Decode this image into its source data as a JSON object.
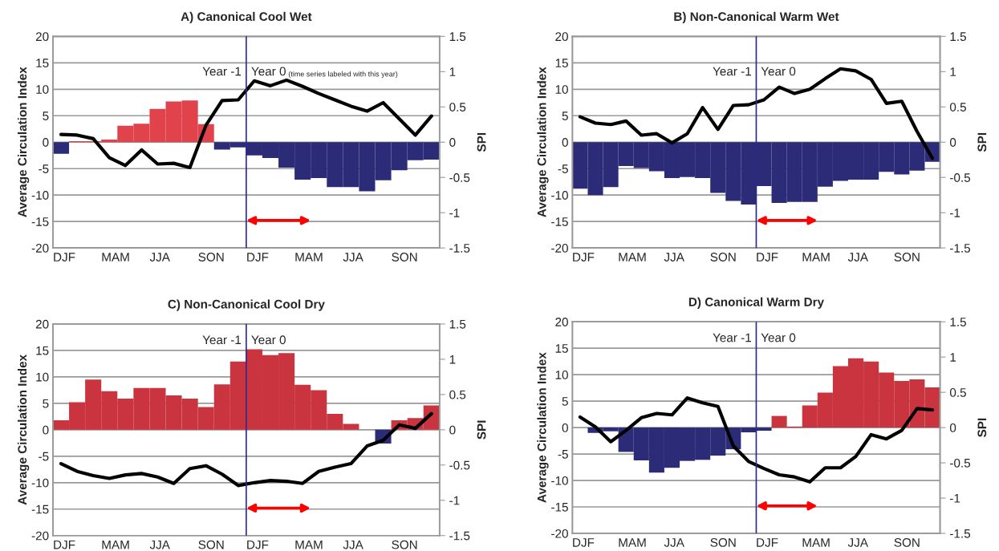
{
  "chart_data": [
    {
      "type": "bar",
      "title": "A) Canonical Cool Wet",
      "ylabel": "Average Circulation Index",
      "y2label": "SPI",
      "categories": [
        "DJF",
        null,
        null,
        "MAM",
        null,
        null,
        "JJA",
        null,
        null,
        "SON",
        null,
        null,
        "DJF",
        null,
        null,
        "MAM",
        null,
        null,
        "JJA",
        null,
        null,
        "SON",
        null,
        null
      ],
      "series": [
        {
          "values": [
            -2.2,
            0.2,
            0.2,
            0.5,
            3.1,
            3.5,
            6.3,
            7.7,
            7.9,
            3.4,
            -1.4,
            -1.0,
            -2.5,
            -3.0,
            -4.8,
            -7.1,
            -6.8,
            -8.5,
            -8.5,
            -9.3,
            -7.2,
            -5.3,
            -3.4,
            -3.3
          ],
          "colors": [
            "#2b2b78",
            "#e0434b",
            "#e0434b",
            "#e0434b",
            "#e0434b",
            "#e0434b",
            "#e0434b",
            "#e0434b",
            "#e0434b",
            "#e0434b",
            "#2b2b78",
            "#2b2b78",
            "#2b2b78",
            "#2b2b78",
            "#2b2b78",
            "#2b2b78",
            "#2b2b78",
            "#2b2b78",
            "#2b2b78",
            "#2b2b78",
            "#2b2b78",
            "#2b2b78",
            "#2b2b78",
            "#2b2b78"
          ]
        },
        {
          "type": "line",
          "axis": "y2",
          "color": "#000000",
          "values": [
            0.11,
            0.1,
            0.05,
            -0.22,
            -0.33,
            -0.11,
            -0.31,
            -0.3,
            -0.36,
            0.24,
            0.59,
            0.6,
            0.87,
            0.8,
            0.88,
            0.79,
            0.69,
            0.6,
            0.51,
            0.44,
            0.56,
            0.33,
            0.1,
            0.37
          ]
        }
      ],
      "ylim": [
        -20,
        20
      ],
      "yticks": [
        -20,
        -15,
        -10,
        -5,
        0,
        5,
        10,
        15,
        20
      ],
      "y2lim": [
        -1.5,
        1.5
      ],
      "y2ticks": [
        -1.5,
        -1,
        -0.5,
        0,
        0.5,
        1,
        1.5
      ],
      "grid": "y",
      "annotations": [
        "Year -1",
        "Year 0",
        "(time series labeled with this year)"
      ]
    },
    {
      "type": "bar",
      "title": "B) Non-Canonical Warm Wet",
      "ylabel": "Average Circulation Index",
      "y2label": "SPI",
      "categories": [
        "DJF",
        null,
        null,
        "MAM",
        null,
        null,
        "JJA",
        null,
        null,
        "SON",
        null,
        null,
        "DJF",
        null,
        null,
        "MAM",
        null,
        null,
        "JJA",
        null,
        null,
        "SON",
        null,
        null
      ],
      "series": [
        {
          "values": [
            -8.8,
            -10.0,
            -8.5,
            -4.5,
            -4.9,
            -5.5,
            -6.8,
            -6.6,
            -6.8,
            -9.6,
            -11.1,
            -11.8,
            -8.3,
            -11.5,
            -11.3,
            -11.3,
            -8.4,
            -7.3,
            -7.1,
            -7.1,
            -5.6,
            -6.1,
            -5.4,
            -3.7
          ],
          "colors": [
            "#2b2b78",
            "#2b2b78",
            "#2b2b78",
            "#2b2b78",
            "#2b2b78",
            "#2b2b78",
            "#2b2b78",
            "#2b2b78",
            "#2b2b78",
            "#2b2b78",
            "#2b2b78",
            "#2b2b78",
            "#2b2b78",
            "#2b2b78",
            "#2b2b78",
            "#2b2b78",
            "#2b2b78",
            "#2b2b78",
            "#2b2b78",
            "#2b2b78",
            "#2b2b78",
            "#2b2b78",
            "#2b2b78",
            "#2b2b78"
          ]
        },
        {
          "type": "line",
          "axis": "y2",
          "color": "#000000",
          "values": [
            0.36,
            0.27,
            0.25,
            0.3,
            0.1,
            0.12,
            -0.01,
            0.12,
            0.49,
            0.18,
            0.52,
            0.53,
            0.6,
            0.78,
            0.69,
            0.75,
            0.9,
            1.04,
            1.01,
            0.89,
            0.55,
            0.58,
            0.15,
            -0.23
          ]
        }
      ],
      "ylim": [
        -20,
        20
      ],
      "yticks": [
        -20,
        -15,
        -10,
        -5,
        0,
        5,
        10,
        15,
        20
      ],
      "y2lim": [
        -1.5,
        1.5
      ],
      "y2ticks": [
        -1.5,
        -1,
        -0.5,
        0,
        0.5,
        1,
        1.5
      ],
      "grid": "y",
      "annotations": [
        "Year -1",
        "Year 0"
      ]
    },
    {
      "type": "bar",
      "title": "C) Non-Canonical Cool Dry",
      "ylabel": "Average Circulation Index",
      "y2label": "SPI",
      "categories": [
        "DJF",
        null,
        null,
        "MAM",
        null,
        null,
        "JJA",
        null,
        null,
        "SON",
        null,
        null,
        "DJF",
        null,
        null,
        "MAM",
        null,
        null,
        "JJA",
        null,
        null,
        "SON",
        null,
        null
      ],
      "series": [
        {
          "values": [
            1.8,
            5.2,
            9.5,
            7.3,
            5.9,
            7.9,
            7.9,
            6.5,
            5.9,
            4.3,
            8.6,
            12.9,
            15.2,
            14.1,
            14.5,
            8.5,
            7.5,
            3.0,
            1.1,
            0,
            -2.6,
            1.8,
            2.2,
            4.6
          ],
          "colors": [
            "#c9343f",
            "#c9343f",
            "#c9343f",
            "#c9343f",
            "#c9343f",
            "#c9343f",
            "#c9343f",
            "#c9343f",
            "#c9343f",
            "#c9343f",
            "#c9343f",
            "#c9343f",
            "#c9343f",
            "#c9343f",
            "#c9343f",
            "#c9343f",
            "#c9343f",
            "#c9343f",
            "#c9343f",
            "#c9343f",
            "#2b2b78",
            "#c9343f",
            "#c9343f",
            "#c9343f"
          ]
        },
        {
          "type": "line",
          "axis": "y2",
          "color": "#000000",
          "values": [
            -0.48,
            -0.59,
            -0.65,
            -0.69,
            -0.64,
            -0.62,
            -0.67,
            -0.76,
            -0.55,
            -0.51,
            -0.63,
            -0.79,
            -0.75,
            -0.72,
            -0.73,
            -0.76,
            -0.59,
            -0.53,
            -0.48,
            -0.23,
            -0.15,
            0.07,
            0.02,
            0.23
          ]
        }
      ],
      "ylim": [
        -20,
        20
      ],
      "yticks": [
        -20,
        -15,
        -10,
        -5,
        0,
        5,
        10,
        15,
        20
      ],
      "y2lim": [
        -1.5,
        1.5
      ],
      "y2ticks": [
        -1.5,
        -1,
        -0.5,
        0,
        0.5,
        1,
        1.5
      ],
      "grid": "y",
      "annotations": [
        "Year -1",
        "Year 0"
      ]
    },
    {
      "type": "bar",
      "title": "D) Canonical Warm Dry",
      "ylabel": "Average Circulation Index",
      "y2label": "SPI",
      "categories": [
        "DJF",
        null,
        null,
        "MAM",
        null,
        null,
        "JJA",
        null,
        null,
        "SON",
        null,
        null,
        "DJF",
        null,
        null,
        "MAM",
        null,
        null,
        "JJA",
        null,
        null,
        "SON",
        null,
        null
      ],
      "series": [
        {
          "values": [
            0,
            -1.0,
            -0.7,
            -4.6,
            -6.2,
            -8.5,
            -7.6,
            -6.3,
            -6.1,
            -5.3,
            -4.1,
            -0.9,
            -0.6,
            2.2,
            0.2,
            4.2,
            6.6,
            11.6,
            13.1,
            12.5,
            10.4,
            8.8,
            9.1,
            7.6
          ],
          "colors": [
            "#2b2b78",
            "#2b2b78",
            "#2b2b78",
            "#2b2b78",
            "#2b2b78",
            "#2b2b78",
            "#2b2b78",
            "#2b2b78",
            "#2b2b78",
            "#2b2b78",
            "#2b2b78",
            "#2b2b78",
            "#2b2b78",
            "#c9343f",
            "#c9343f",
            "#c9343f",
            "#c9343f",
            "#c9343f",
            "#c9343f",
            "#c9343f",
            "#c9343f",
            "#c9343f",
            "#c9343f",
            "#c9343f"
          ]
        },
        {
          "type": "line",
          "axis": "y2",
          "color": "#000000",
          "values": [
            0.15,
            0.01,
            -0.2,
            -0.04,
            0.14,
            0.2,
            0.18,
            0.42,
            0.35,
            0.3,
            -0.26,
            -0.48,
            -0.58,
            -0.67,
            -0.7,
            -0.77,
            -0.57,
            -0.57,
            -0.41,
            -0.1,
            -0.16,
            -0.04,
            0.27,
            0.25
          ]
        }
      ],
      "ylim": [
        -20,
        20
      ],
      "yticks": [
        -20,
        -15,
        -10,
        -5,
        0,
        5,
        10,
        15,
        20
      ],
      "y2lim": [
        -1.5,
        1.5
      ],
      "y2ticks": [
        -1.5,
        -1,
        -0.5,
        0,
        0.5,
        1,
        1.5
      ],
      "grid": "y",
      "annotations": [
        "Year -1",
        "Year 0"
      ]
    }
  ]
}
